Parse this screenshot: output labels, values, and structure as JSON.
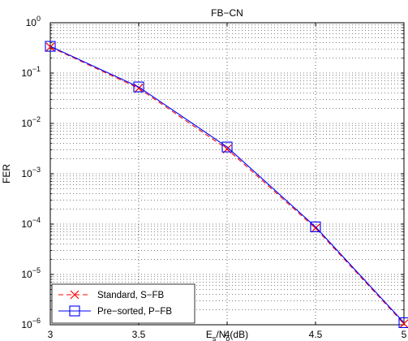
{
  "chart_data": {
    "type": "line",
    "title": "FB−CN",
    "xlabel": {
      "base": "E",
      "sub1": "s",
      "mid": "/N",
      "sub2": "o",
      "suffix": "(dB)"
    },
    "ylabel": "FER",
    "xlim": [
      3,
      5
    ],
    "ylim": [
      1e-06,
      1
    ],
    "yscale": "log",
    "grid": true,
    "x_ticks": [
      "3",
      "3.5",
      "4",
      "4.5",
      "5"
    ],
    "y_ticks": [
      {
        "base": "10",
        "exp": "0"
      },
      {
        "base": "10",
        "exp": "−1"
      },
      {
        "base": "10",
        "exp": "−2"
      },
      {
        "base": "10",
        "exp": "−3"
      },
      {
        "base": "10",
        "exp": "−4"
      },
      {
        "base": "10",
        "exp": "−5"
      },
      {
        "base": "10",
        "exp": "−6"
      }
    ],
    "legend_position": "bottom-left",
    "series": [
      {
        "name": "Standard, S−FB",
        "color": "#ff0000",
        "line_style": "dashed",
        "marker": "x",
        "x": [
          3,
          3.5,
          4,
          4.5,
          5
        ],
        "y": [
          0.33,
          0.05,
          0.0031,
          8.3e-05,
          1.05e-06
        ]
      },
      {
        "name": "Pre−sorted, P−FB",
        "color": "#0000ff",
        "line_style": "solid",
        "marker": "square",
        "x": [
          3,
          3.5,
          4,
          4.5,
          5
        ],
        "y": [
          0.34,
          0.053,
          0.0034,
          8.8e-05,
          1.1e-06
        ]
      }
    ]
  }
}
